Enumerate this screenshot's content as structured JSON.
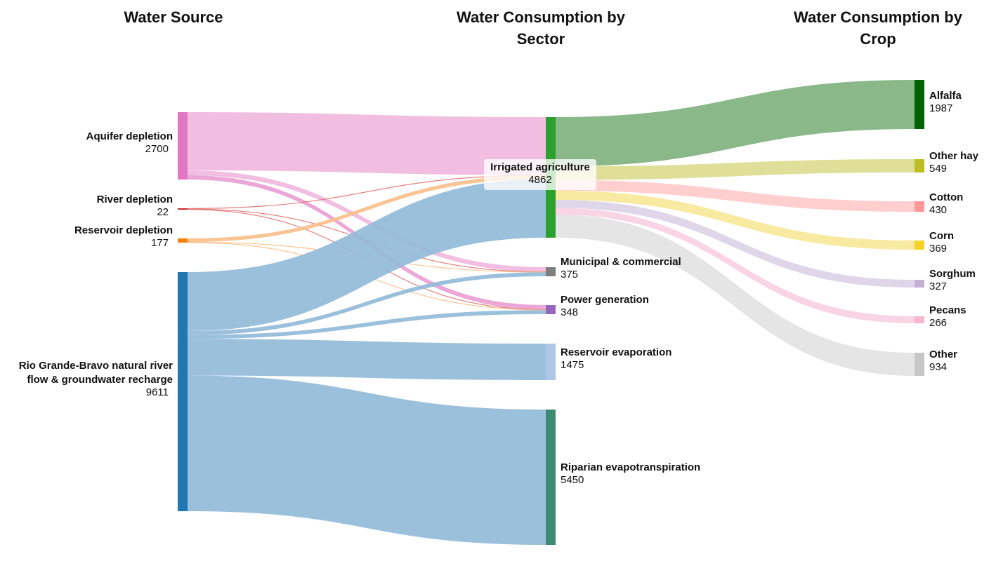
{
  "columns": [
    {
      "id": "source",
      "title_lines": [
        "Water Source"
      ]
    },
    {
      "id": "sector",
      "title_lines": [
        "Water Consumption by",
        "Sector"
      ]
    },
    {
      "id": "crop",
      "title_lines": [
        "Water Consumption by",
        "Crop"
      ]
    }
  ],
  "chart_data": {
    "type": "sankey",
    "nodes": [
      {
        "id": "aquifer",
        "column": "source",
        "name_lines": [
          "Aquifer depletion"
        ],
        "value": "2700",
        "color": "#e377c2"
      },
      {
        "id": "river",
        "column": "source",
        "name_lines": [
          "River depletion"
        ],
        "value": "22",
        "color": "#d62728"
      },
      {
        "id": "reservoir",
        "column": "source",
        "name_lines": [
          "Reservoir depletion"
        ],
        "value": "177",
        "color": "#ff7f0e"
      },
      {
        "id": "natural",
        "column": "source",
        "name_lines": [
          "Rio Grande-Bravo natural river",
          "flow & groundwater recharge"
        ],
        "value": "9611",
        "color": "#1f77b4"
      },
      {
        "id": "irrigated",
        "column": "sector",
        "name_lines": [
          "Irrigated agriculture"
        ],
        "value": "4862",
        "color": "#2ca02c"
      },
      {
        "id": "municipal",
        "column": "sector",
        "name_lines": [
          "Municipal & commercial"
        ],
        "value": "375",
        "color": "#7f7f7f"
      },
      {
        "id": "power",
        "column": "sector",
        "name_lines": [
          "Power generation"
        ],
        "value": "348",
        "color": "#9467bd"
      },
      {
        "id": "res_evap",
        "column": "sector",
        "name_lines": [
          "Reservoir evaporation"
        ],
        "value": "1475",
        "color": "#aec7e8"
      },
      {
        "id": "riparian",
        "column": "sector",
        "name_lines": [
          "Riparian evapotranspiration"
        ],
        "value": "5450",
        "color": "#3e8a72"
      },
      {
        "id": "alfalfa",
        "column": "crop",
        "name_lines": [
          "Alfalfa"
        ],
        "value": "1987",
        "color": "#006400"
      },
      {
        "id": "otherhay",
        "column": "crop",
        "name_lines": [
          "Other hay"
        ],
        "value": "549",
        "color": "#bcbd22"
      },
      {
        "id": "cotton",
        "column": "crop",
        "name_lines": [
          "Cotton"
        ],
        "value": "430",
        "color": "#ff9896"
      },
      {
        "id": "corn",
        "column": "crop",
        "name_lines": [
          "Corn"
        ],
        "value": "369",
        "color": "#f5d328"
      },
      {
        "id": "sorghum",
        "column": "crop",
        "name_lines": [
          "Sorghum"
        ],
        "value": "327",
        "color": "#c5b0d5"
      },
      {
        "id": "pecans",
        "column": "crop",
        "name_lines": [
          "Pecans"
        ],
        "value": "266",
        "color": "#f7b6d2"
      },
      {
        "id": "other",
        "column": "crop",
        "name_lines": [
          "Other"
        ],
        "value": "934",
        "color": "#c7c7c7"
      }
    ],
    "links": [
      {
        "source": "aquifer",
        "target": "irrigated",
        "value": 2337,
        "color": "#f0b8de"
      },
      {
        "source": "aquifer",
        "target": "municipal",
        "value": 190,
        "color": "#f0b8de"
      },
      {
        "source": "aquifer",
        "target": "power",
        "value": 173,
        "color": "#e9a0d4"
      },
      {
        "source": "river",
        "target": "irrigated",
        "value": 8,
        "color": "#e0706f"
      },
      {
        "source": "river",
        "target": "municipal",
        "value": 7,
        "color": "#e0706f"
      },
      {
        "source": "river",
        "target": "power",
        "value": 7,
        "color": "#e0706f"
      },
      {
        "source": "reservoir",
        "target": "irrigated",
        "value": 150,
        "color": "#f9bf8a"
      },
      {
        "source": "reservoir",
        "target": "municipal",
        "value": 14,
        "color": "#f9bf8a"
      },
      {
        "source": "reservoir",
        "target": "power",
        "value": 13,
        "color": "#f9bf8a"
      },
      {
        "source": "natural",
        "target": "irrigated",
        "value": 2367,
        "color": "#92bbd9"
      },
      {
        "source": "natural",
        "target": "municipal",
        "value": 164,
        "color": "#92bbd9"
      },
      {
        "source": "natural",
        "target": "power",
        "value": 155,
        "color": "#92bbd9"
      },
      {
        "source": "natural",
        "target": "res_evap",
        "value": 1475,
        "color": "#92bbd9"
      },
      {
        "source": "natural",
        "target": "riparian",
        "value": 5450,
        "color": "#92bbd9"
      },
      {
        "source": "irrigated",
        "target": "alfalfa",
        "value": 1987,
        "color": "#80b27f"
      },
      {
        "source": "irrigated",
        "target": "otherhay",
        "value": 549,
        "color": "#dcdc91"
      },
      {
        "source": "irrigated",
        "target": "cotton",
        "value": 430,
        "color": "#ffcbcb"
      },
      {
        "source": "irrigated",
        "target": "corn",
        "value": 369,
        "color": "#f9e89a"
      },
      {
        "source": "irrigated",
        "target": "sorghum",
        "value": 327,
        "color": "#ddd3e7"
      },
      {
        "source": "irrigated",
        "target": "pecans",
        "value": 266,
        "color": "#f8d0e3"
      },
      {
        "source": "irrigated",
        "target": "other",
        "value": 934,
        "color": "#e3e3e3"
      }
    ]
  }
}
